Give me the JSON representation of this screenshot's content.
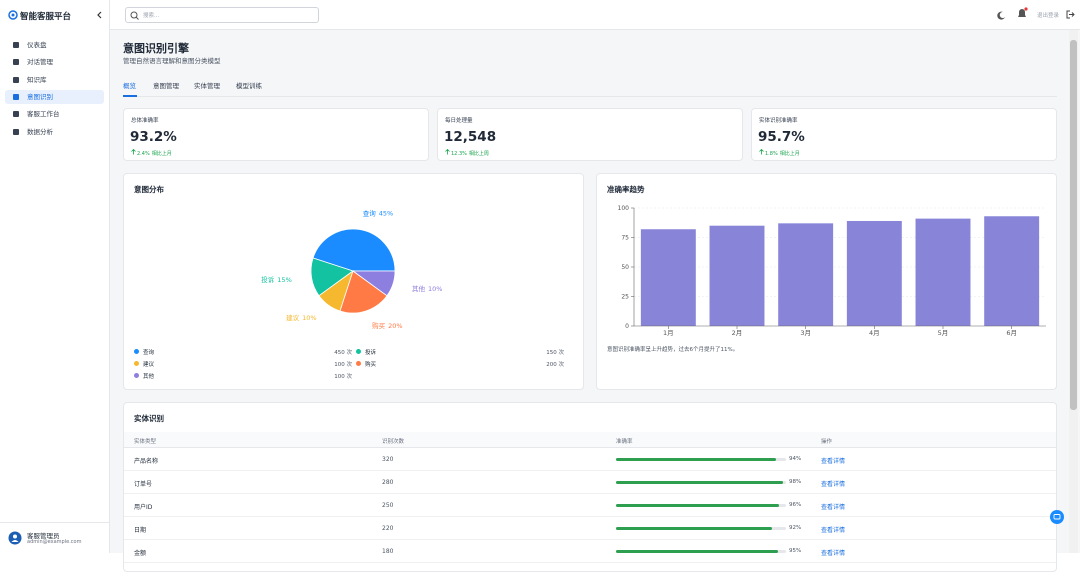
{
  "sidebar": {
    "brand": "智能客服平台",
    "nav": [
      "仪表盘",
      "对话管理",
      "知识库",
      "意图识别",
      "客服工作台",
      "数据分析"
    ],
    "active": 3,
    "user": {
      "name": "客服管理员",
      "email": "admin@example.com"
    }
  },
  "topbar": {
    "search_placeholder": "搜索...",
    "logout": "退出登录"
  },
  "header": {
    "title": "意图识别引擎",
    "subtitle": "管理自然语言理解和意图分类模型"
  },
  "tabs": {
    "items": [
      "概览",
      "意图管理",
      "实体管理",
      "模型训练"
    ],
    "active": 0
  },
  "stats": [
    {
      "label": "总体准确率",
      "value": "93.2%",
      "change": "2.4%",
      "period": "相比上月"
    },
    {
      "label": "每日处理量",
      "value": "12,548",
      "change": "12.3%",
      "period": "相比上周"
    },
    {
      "label": "实体识别准确率",
      "value": "95.7%",
      "change": "1.8%",
      "period": "相比上月"
    }
  ],
  "chart_data": [
    {
      "type": "pie",
      "title": "意图分布",
      "categories": [
        "查询",
        "投诉",
        "建议",
        "购买",
        "其他"
      ],
      "values": [
        45,
        15,
        10,
        20,
        10
      ],
      "value_labels": [
        "45%",
        "15%",
        "10%",
        "20%",
        "10%"
      ],
      "colors": [
        "#1a8cff",
        "#13c2a0",
        "#f5b82e",
        "#ff7a45",
        "#8c7fe0"
      ],
      "legend_counts": [
        "450 次",
        "150 次",
        "100 次",
        "200 次",
        "100 次"
      ]
    },
    {
      "type": "bar",
      "title": "准确率趋势",
      "categories": [
        "1月",
        "2月",
        "3月",
        "4月",
        "5月",
        "6月"
      ],
      "values": [
        82,
        85,
        87,
        89,
        91,
        93
      ],
      "color": "#8884d8",
      "ylim": [
        0,
        100
      ],
      "yticks": [
        0,
        25,
        50,
        75,
        100
      ],
      "grid": true,
      "note": "意图识别准确率呈上升趋势，过去6个月提升了11%。"
    }
  ],
  "entity_table": {
    "title": "实体识别",
    "headers": [
      "实体类型",
      "识别次数",
      "准确率",
      "操作"
    ],
    "rows": [
      {
        "type": "产品名称",
        "count": 320,
        "accuracy": 94,
        "accuracy_label": "94%",
        "action": "查看详情"
      },
      {
        "type": "订单号",
        "count": 280,
        "accuracy": 98,
        "accuracy_label": "98%",
        "action": "查看详情"
      },
      {
        "type": "用户ID",
        "count": 250,
        "accuracy": 96,
        "accuracy_label": "96%",
        "action": "查看详情"
      },
      {
        "type": "日期",
        "count": 220,
        "accuracy": 92,
        "accuracy_label": "92%",
        "action": "查看详情"
      },
      {
        "type": "金额",
        "count": 180,
        "accuracy": 95,
        "accuracy_label": "95%",
        "action": "查看详情"
      }
    ]
  }
}
